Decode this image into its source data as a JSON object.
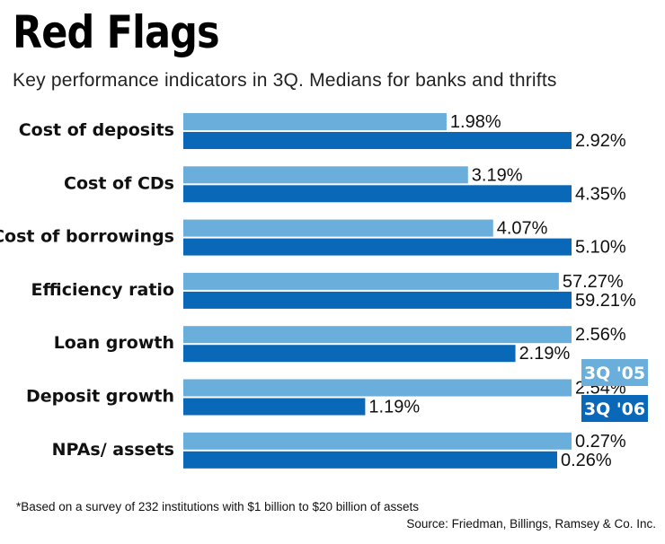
{
  "title": "Red Flags",
  "subtitle": "Key performance indicators in 3Q. Medians for banks and thrifts",
  "footnote": "*Based on a survey of 232 institutions with $1 billion to $20 billion of assets",
  "source": "Source: Friedman, Billings, Ramsey & Co. Inc.",
  "colors": {
    "series_2005": "#6aaedb",
    "series_2006": "#0a68b8"
  },
  "chart_data": {
    "type": "bar",
    "orientation": "horizontal",
    "grouped": true,
    "per_category_scale": true,
    "categories": [
      "Cost of deposits",
      "Cost of CDs",
      "Cost of borrowings",
      "Efficiency ratio",
      "Loan growth",
      "Deposit growth",
      "NPAs/ assets"
    ],
    "series": [
      {
        "name": "3Q '05",
        "color": "#6aaedb",
        "values": [
          1.98,
          3.19,
          4.07,
          57.27,
          2.56,
          2.54,
          0.27
        ],
        "labels": [
          "1.98%",
          "3.19%",
          "4.07%",
          "57.27%",
          "2.56%",
          "2.54%",
          "0.27%"
        ]
      },
      {
        "name": "3Q '06",
        "color": "#0a68b8",
        "values": [
          2.92,
          4.35,
          5.1,
          59.21,
          2.19,
          1.19,
          0.26
        ],
        "labels": [
          "2.92%",
          "4.35%",
          "5.10%",
          "59.21%",
          "2.19%",
          "1.19%",
          "0.26%"
        ]
      }
    ],
    "legend": "right",
    "grid": false
  }
}
